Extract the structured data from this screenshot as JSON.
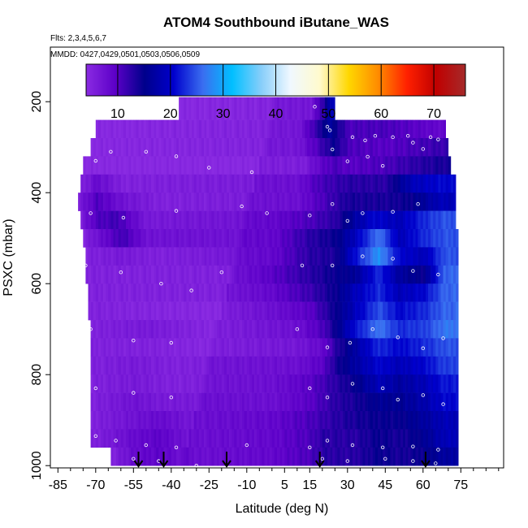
{
  "chart_data": {
    "type": "heatmap",
    "title": "ATOM4 Southbound iButane_WAS",
    "subtitle_flights": "Flts: 2,3,4,5,6,7",
    "subtitle_dates": "MMDD: 0427,0429,0501,0503,0506,0509",
    "xlabel": "Latitude (deg N)",
    "ylabel": "PSXC (mbar)",
    "xlim": [
      -88,
      92
    ],
    "ylim": [
      1005,
      80
    ],
    "y_inverted": true,
    "x_ticks": [
      -85,
      -70,
      -55,
      -40,
      -25,
      -10,
      5,
      15,
      30,
      45,
      60,
      75
    ],
    "x_minor_ticks": [
      -90,
      -80,
      -75,
      -65,
      -60,
      -50,
      -45,
      -35,
      -30,
      -20,
      -15,
      -5,
      0,
      10,
      20,
      25,
      35,
      40,
      50,
      55,
      65,
      70,
      80,
      85,
      90
    ],
    "y_ticks": [
      200,
      400,
      600,
      800,
      1000
    ],
    "colorbar": {
      "min": 4,
      "max": 76,
      "ticks": [
        10,
        20,
        30,
        40,
        50,
        60,
        70
      ],
      "colors": [
        "#8a2be2",
        "#5c00c8",
        "#00008b",
        "#0000cd",
        "#3a6ef0",
        "#00bfff",
        "#87cefa",
        "#f0f8ff",
        "#fffacd",
        "#ffd700",
        "#ff8c00",
        "#ff2000",
        "#c00000",
        "#a52a2a"
      ]
    },
    "flight_arrows_lat": [
      -53,
      -43,
      -18,
      19,
      61
    ],
    "rows": [
      {
        "p": 220,
        "lat0": -37,
        "lat1": 25,
        "values": [
          [
            -37,
            5
          ],
          [
            15,
            6
          ],
          [
            20,
            12
          ],
          [
            23,
            18
          ]
        ]
      },
      {
        "p": 260,
        "lat0": -70,
        "lat1": 69,
        "values": [
          [
            -70,
            5
          ],
          [
            10,
            6
          ],
          [
            18,
            12
          ],
          [
            22,
            16
          ],
          [
            30,
            10
          ],
          [
            45,
            10
          ],
          [
            55,
            9
          ],
          [
            65,
            8
          ]
        ]
      },
      {
        "p": 300,
        "lat0": -72,
        "lat1": 70,
        "values": [
          [
            -72,
            5
          ],
          [
            10,
            6
          ],
          [
            18,
            10
          ],
          [
            24,
            14
          ],
          [
            30,
            10
          ],
          [
            45,
            9
          ],
          [
            55,
            10
          ],
          [
            65,
            11
          ]
        ]
      },
      {
        "p": 340,
        "lat0": -75,
        "lat1": 71,
        "values": [
          [
            -75,
            5
          ],
          [
            12,
            5
          ],
          [
            18,
            8
          ],
          [
            24,
            10
          ],
          [
            30,
            9
          ],
          [
            45,
            10
          ],
          [
            58,
            12
          ],
          [
            66,
            13
          ]
        ]
      },
      {
        "p": 380,
        "lat0": -76,
        "lat1": 73,
        "values": [
          [
            -76,
            6
          ],
          [
            -70,
            9
          ],
          [
            -60,
            6
          ],
          [
            10,
            7
          ],
          [
            18,
            10
          ],
          [
            24,
            11
          ],
          [
            30,
            12
          ],
          [
            45,
            12
          ],
          [
            55,
            18
          ],
          [
            66,
            20
          ]
        ]
      },
      {
        "p": 420,
        "lat0": -77,
        "lat1": 73,
        "values": [
          [
            -77,
            7
          ],
          [
            -70,
            11
          ],
          [
            -60,
            8
          ],
          [
            -45,
            6
          ],
          [
            10,
            7
          ],
          [
            20,
            10
          ],
          [
            30,
            13
          ],
          [
            45,
            13
          ],
          [
            55,
            14
          ],
          [
            66,
            18
          ]
        ]
      },
      {
        "p": 460,
        "lat0": -76,
        "lat1": 73,
        "values": [
          [
            -76,
            7
          ],
          [
            -70,
            11
          ],
          [
            -62,
            12
          ],
          [
            -50,
            7
          ],
          [
            0,
            8
          ],
          [
            15,
            10
          ],
          [
            25,
            12
          ],
          [
            30,
            15
          ],
          [
            40,
            20
          ],
          [
            50,
            18
          ],
          [
            60,
            22
          ],
          [
            68,
            24
          ]
        ]
      },
      {
        "p": 500,
        "lat0": -75,
        "lat1": 74,
        "values": [
          [
            -75,
            6
          ],
          [
            -70,
            8
          ],
          [
            -60,
            12
          ],
          [
            -50,
            8
          ],
          [
            0,
            8
          ],
          [
            15,
            12
          ],
          [
            25,
            14
          ],
          [
            32,
            18
          ],
          [
            42,
            26
          ],
          [
            50,
            18
          ],
          [
            60,
            22
          ],
          [
            68,
            24
          ]
        ]
      },
      {
        "p": 540,
        "lat0": -74,
        "lat1": 74,
        "values": [
          [
            -74,
            6
          ],
          [
            -60,
            7
          ],
          [
            -45,
            6
          ],
          [
            0,
            8
          ],
          [
            15,
            12
          ],
          [
            25,
            13
          ],
          [
            32,
            20
          ],
          [
            42,
            28
          ],
          [
            50,
            20
          ],
          [
            60,
            18
          ],
          [
            68,
            24
          ]
        ]
      },
      {
        "p": 580,
        "lat0": -74,
        "lat1": 74,
        "values": [
          [
            -74,
            6
          ],
          [
            -60,
            6
          ],
          [
            -20,
            6
          ],
          [
            0,
            9
          ],
          [
            15,
            12
          ],
          [
            25,
            14
          ],
          [
            32,
            15
          ],
          [
            42,
            22
          ],
          [
            50,
            16
          ],
          [
            60,
            14
          ],
          [
            68,
            25
          ]
        ]
      },
      {
        "p": 620,
        "lat0": -73,
        "lat1": 74,
        "values": [
          [
            -73,
            6
          ],
          [
            -20,
            6
          ],
          [
            0,
            8
          ],
          [
            15,
            11
          ],
          [
            25,
            14
          ],
          [
            32,
            18
          ],
          [
            42,
            22
          ],
          [
            50,
            18
          ],
          [
            60,
            20
          ],
          [
            68,
            25
          ]
        ]
      },
      {
        "p": 660,
        "lat0": -73,
        "lat1": 74,
        "values": [
          [
            -73,
            6
          ],
          [
            -20,
            5
          ],
          [
            0,
            7
          ],
          [
            15,
            9
          ],
          [
            25,
            14
          ],
          [
            32,
            18
          ],
          [
            42,
            24
          ],
          [
            50,
            20
          ],
          [
            60,
            22
          ],
          [
            68,
            25
          ]
        ]
      },
      {
        "p": 700,
        "lat0": -72,
        "lat1": 74,
        "values": [
          [
            -72,
            6
          ],
          [
            -50,
            7
          ],
          [
            -20,
            5
          ],
          [
            10,
            7
          ],
          [
            20,
            10
          ],
          [
            25,
            14
          ],
          [
            32,
            20
          ],
          [
            42,
            26
          ],
          [
            50,
            22
          ],
          [
            60,
            23
          ],
          [
            68,
            26
          ]
        ]
      },
      {
        "p": 740,
        "lat0": -72,
        "lat1": 74,
        "values": [
          [
            -72,
            6
          ],
          [
            -50,
            6
          ],
          [
            -20,
            5
          ],
          [
            10,
            6
          ],
          [
            20,
            8
          ],
          [
            25,
            12
          ],
          [
            32,
            16
          ],
          [
            42,
            22
          ],
          [
            50,
            20
          ],
          [
            60,
            22
          ],
          [
            68,
            24
          ]
        ]
      },
      {
        "p": 780,
        "lat0": -72,
        "lat1": 74,
        "values": [
          [
            -72,
            6
          ],
          [
            -55,
            7
          ],
          [
            -40,
            6
          ],
          [
            10,
            7
          ],
          [
            20,
            9
          ],
          [
            25,
            13
          ],
          [
            32,
            16
          ],
          [
            42,
            20
          ],
          [
            50,
            18
          ],
          [
            60,
            20
          ],
          [
            68,
            23
          ]
        ]
      },
      {
        "p": 820,
        "lat0": -72,
        "lat1": 74,
        "values": [
          [
            -72,
            6
          ],
          [
            -55,
            7
          ],
          [
            -40,
            6
          ],
          [
            0,
            7
          ],
          [
            15,
            9
          ],
          [
            25,
            12
          ],
          [
            32,
            14
          ],
          [
            42,
            18
          ],
          [
            50,
            16
          ],
          [
            60,
            18
          ],
          [
            68,
            21
          ]
        ]
      },
      {
        "p": 860,
        "lat0": -72,
        "lat1": 74,
        "values": [
          [
            -72,
            6
          ],
          [
            -55,
            8
          ],
          [
            -45,
            7
          ],
          [
            0,
            7
          ],
          [
            15,
            9
          ],
          [
            25,
            12
          ],
          [
            32,
            13
          ],
          [
            42,
            15
          ],
          [
            50,
            15
          ],
          [
            60,
            17
          ],
          [
            68,
            20
          ]
        ]
      },
      {
        "p": 900,
        "lat0": -72,
        "lat1": 74,
        "values": [
          [
            -72,
            6
          ],
          [
            -55,
            8
          ],
          [
            -45,
            9
          ],
          [
            -30,
            7
          ],
          [
            0,
            8
          ],
          [
            15,
            10
          ],
          [
            25,
            12
          ],
          [
            32,
            13
          ],
          [
            42,
            14
          ],
          [
            50,
            14
          ],
          [
            60,
            16
          ],
          [
            68,
            18
          ]
        ]
      },
      {
        "p": 940,
        "lat0": -72,
        "lat1": 74,
        "values": [
          [
            -72,
            6
          ],
          [
            -55,
            9
          ],
          [
            -45,
            10
          ],
          [
            -30,
            7
          ],
          [
            0,
            8
          ],
          [
            15,
            10
          ],
          [
            20,
            12
          ],
          [
            25,
            12
          ],
          [
            32,
            12
          ],
          [
            42,
            14
          ],
          [
            50,
            13
          ],
          [
            60,
            15
          ],
          [
            68,
            18
          ]
        ]
      },
      {
        "p": 980,
        "lat0": -64,
        "lat1": 74,
        "values": [
          [
            -64,
            6
          ],
          [
            -55,
            9
          ],
          [
            -45,
            10
          ],
          [
            -30,
            7
          ],
          [
            0,
            8
          ],
          [
            15,
            10
          ],
          [
            20,
            12
          ],
          [
            25,
            12
          ],
          [
            32,
            12
          ],
          [
            42,
            14
          ],
          [
            50,
            13
          ],
          [
            60,
            14
          ],
          [
            68,
            16
          ]
        ]
      }
    ],
    "sample_points": [
      [
        17,
        211
      ],
      [
        22,
        255
      ],
      [
        23,
        263
      ],
      [
        32,
        278
      ],
      [
        37,
        285
      ],
      [
        41,
        275
      ],
      [
        48,
        278
      ],
      [
        54,
        275
      ],
      [
        56,
        290
      ],
      [
        63,
        278
      ],
      [
        66,
        283
      ],
      [
        -70,
        330
      ],
      [
        -64,
        310
      ],
      [
        -50,
        310
      ],
      [
        -38,
        320
      ],
      [
        -25,
        345
      ],
      [
        -8,
        355
      ],
      [
        24,
        305
      ],
      [
        30,
        331
      ],
      [
        38,
        321
      ],
      [
        44,
        341
      ],
      [
        60,
        304
      ],
      [
        -72,
        445
      ],
      [
        -59,
        455
      ],
      [
        -38,
        440
      ],
      [
        -12,
        430
      ],
      [
        -2,
        445
      ],
      [
        15,
        450
      ],
      [
        24,
        425
      ],
      [
        30,
        462
      ],
      [
        36,
        445
      ],
      [
        48,
        442
      ],
      [
        58,
        425
      ],
      [
        -74,
        560
      ],
      [
        -60,
        575
      ],
      [
        -44,
        600
      ],
      [
        -32,
        615
      ],
      [
        -20,
        575
      ],
      [
        12,
        560
      ],
      [
        24,
        560
      ],
      [
        36,
        540
      ],
      [
        48,
        545
      ],
      [
        56,
        572
      ],
      [
        66,
        580
      ],
      [
        -72,
        700
      ],
      [
        -55,
        725
      ],
      [
        -40,
        730
      ],
      [
        10,
        700
      ],
      [
        22,
        740
      ],
      [
        31,
        730
      ],
      [
        40,
        700
      ],
      [
        50,
        718
      ],
      [
        60,
        742
      ],
      [
        68,
        720
      ],
      [
        -70,
        830
      ],
      [
        -55,
        840
      ],
      [
        -40,
        850
      ],
      [
        15,
        830
      ],
      [
        22,
        850
      ],
      [
        32,
        820
      ],
      [
        44,
        830
      ],
      [
        50,
        855
      ],
      [
        60,
        845
      ],
      [
        68,
        865
      ],
      [
        -70,
        935
      ],
      [
        -62,
        945
      ],
      [
        -50,
        955
      ],
      [
        -38,
        960
      ],
      [
        -10,
        955
      ],
      [
        15,
        960
      ],
      [
        22,
        945
      ],
      [
        32,
        955
      ],
      [
        44,
        960
      ],
      [
        56,
        958
      ],
      [
        66,
        965
      ],
      [
        -55,
        985
      ],
      [
        -45,
        990
      ],
      [
        -30,
        1000
      ],
      [
        20,
        985
      ],
      [
        30,
        990
      ],
      [
        45,
        985
      ],
      [
        56,
        990
      ],
      [
        65,
        995
      ]
    ]
  }
}
